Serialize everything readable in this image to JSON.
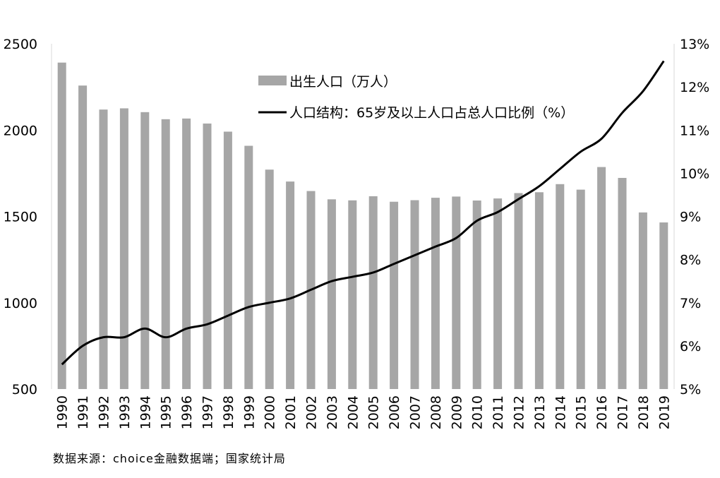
{
  "chart_data": {
    "type": "bar+line",
    "categories": [
      "1990",
      "1991",
      "1992",
      "1993",
      "1994",
      "1995",
      "1996",
      "1997",
      "1998",
      "1999",
      "2000",
      "2001",
      "2002",
      "2003",
      "2004",
      "2005",
      "2006",
      "2007",
      "2008",
      "2009",
      "2010",
      "2011",
      "2012",
      "2013",
      "2014",
      "2015",
      "2016",
      "2017",
      "2018",
      "2019"
    ],
    "series": [
      {
        "name": "出生人口（万人）",
        "type": "bar",
        "axis": "left",
        "color": "#a6a6a6",
        "values": [
          2391,
          2258,
          2119,
          2126,
          2104,
          2063,
          2067,
          2038,
          1991,
          1909,
          1771,
          1702,
          1647,
          1599,
          1593,
          1617,
          1585,
          1594,
          1608,
          1615,
          1592,
          1604,
          1635,
          1640,
          1687,
          1655,
          1786,
          1723,
          1523,
          1465
        ]
      },
      {
        "name": "人口结构：65岁及以上人口占总人口比例（%）",
        "type": "line",
        "axis": "right",
        "color": "#000000",
        "values": [
          5.57,
          6.0,
          6.2,
          6.2,
          6.4,
          6.2,
          6.4,
          6.5,
          6.7,
          6.9,
          7.0,
          7.1,
          7.3,
          7.5,
          7.6,
          7.7,
          7.9,
          8.1,
          8.3,
          8.5,
          8.9,
          9.1,
          9.4,
          9.7,
          10.1,
          10.5,
          10.8,
          11.4,
          11.9,
          12.6
        ]
      }
    ],
    "y_left": {
      "range": [
        500,
        2500
      ],
      "ticks": [
        "500",
        "1000",
        "1500",
        "2000",
        "2500"
      ]
    },
    "y_right": {
      "range": [
        5,
        13
      ],
      "ticks": [
        "5%",
        "6%",
        "7%",
        "8%",
        "9%",
        "10%",
        "11%",
        "12%",
        "13%"
      ]
    },
    "grid": false,
    "legend_placement": "top-center",
    "source": "数据来源：choice金融数据端；国家统计局"
  }
}
